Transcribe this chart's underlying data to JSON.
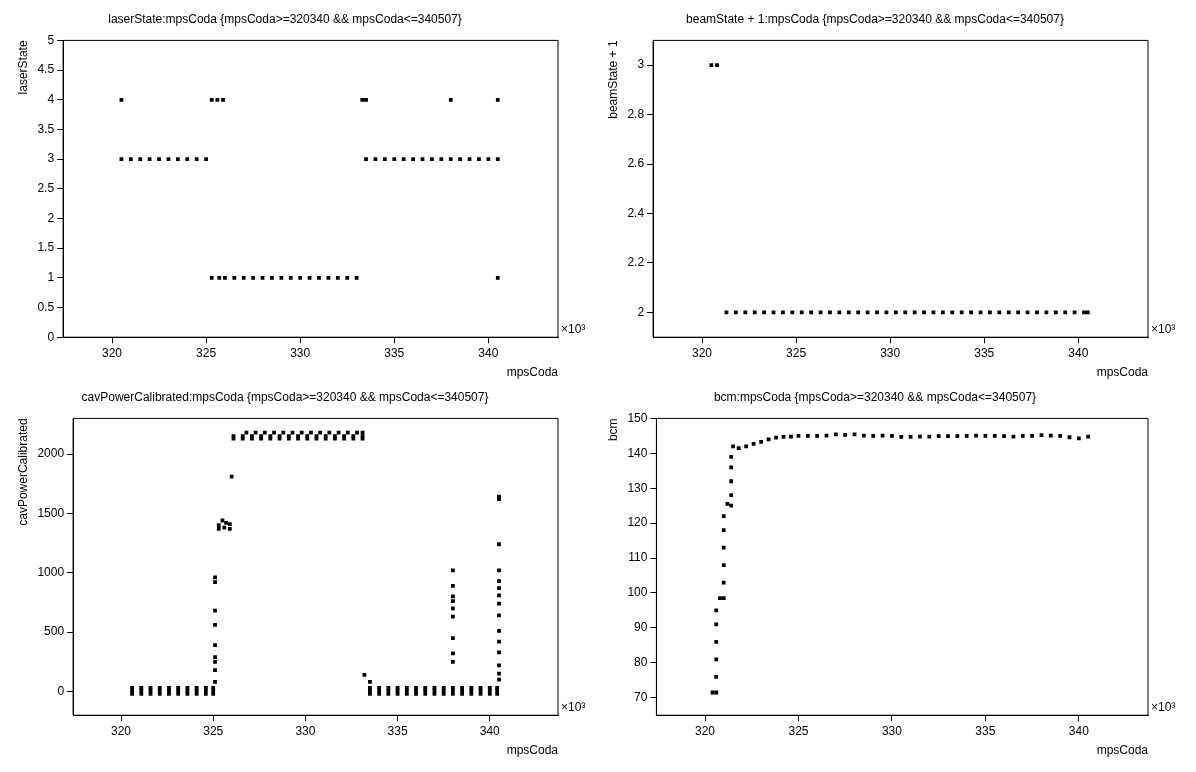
{
  "chart_data": [
    {
      "type": "scatter",
      "title": "laserState:mpsCoda {mpsCoda>=320340 && mpsCoda<=340507}",
      "xlabel": "mpsCoda",
      "ylabel": "laserState",
      "annotations": [
        "×10³"
      ],
      "color": "#000000",
      "x": [
        320.5,
        325.3,
        325.6,
        325.9,
        333.3,
        333.5,
        338,
        340.5,
        320.5,
        321,
        321.5,
        322,
        322.5,
        323,
        323.5,
        324,
        324.5,
        325,
        333.5,
        334,
        334.5,
        335,
        335.5,
        336,
        336.5,
        337,
        337.5,
        338,
        338.5,
        339,
        339.5,
        340,
        340.5,
        325.3,
        325.7,
        326,
        326.5,
        327,
        327.5,
        328,
        328.5,
        329,
        329.5,
        330,
        330.5,
        331,
        331.5,
        332,
        332.5,
        333,
        340.5
      ],
      "values": [
        4,
        4,
        4,
        4,
        4,
        4,
        4,
        4,
        3,
        3,
        3,
        3,
        3,
        3,
        3,
        3,
        3,
        3,
        3,
        3,
        3,
        3,
        3,
        3,
        3,
        3,
        3,
        3,
        3,
        3,
        3,
        3,
        3,
        1,
        1,
        1,
        1,
        1,
        1,
        1,
        1,
        1,
        1,
        1,
        1,
        1,
        1,
        1,
        1,
        1,
        1
      ],
      "xlim": [
        317.4,
        343.7
      ],
      "xticks": [
        320,
        325,
        330,
        335,
        340
      ],
      "ylim": [
        0,
        5
      ],
      "yticks": [
        0,
        0.5,
        1,
        1.5,
        2,
        2.5,
        3,
        3.5,
        4,
        4.5,
        5
      ]
    },
    {
      "type": "scatter",
      "title": "beamState + 1:mpsCoda {mpsCoda>=320340 && mpsCoda<=340507}",
      "xlabel": "mpsCoda",
      "ylabel": "beamState + 1",
      "annotations": [
        "×10³"
      ],
      "color": "#000000",
      "x": [
        320.5,
        320.8,
        321.3,
        321.8,
        322.3,
        322.8,
        323.3,
        323.8,
        324.3,
        324.8,
        325.3,
        325.8,
        326.3,
        326.8,
        327.3,
        327.8,
        328.3,
        328.8,
        329.3,
        329.8,
        330.3,
        330.8,
        331.3,
        331.8,
        332.3,
        332.8,
        333.3,
        333.8,
        334.3,
        334.8,
        335.3,
        335.8,
        336.3,
        336.8,
        337.3,
        337.8,
        338.3,
        338.8,
        339.3,
        339.8,
        340.3,
        340.5
      ],
      "values": [
        3,
        3,
        2,
        2,
        2,
        2,
        2,
        2,
        2,
        2,
        2,
        2,
        2,
        2,
        2,
        2,
        2,
        2,
        2,
        2,
        2,
        2,
        2,
        2,
        2,
        2,
        2,
        2,
        2,
        2,
        2,
        2,
        2,
        2,
        2,
        2,
        2,
        2,
        2,
        2,
        2,
        2
      ],
      "xlim": [
        317.4,
        343.7
      ],
      "xticks": [
        320,
        325,
        330,
        335,
        340
      ],
      "ylim": [
        1.9,
        3.1
      ],
      "yticks": [
        2,
        2.2,
        2.4,
        2.6,
        2.8,
        3
      ]
    },
    {
      "type": "scatter",
      "title": "cavPowerCalibrated:mpsCoda {mpsCoda>=320340 && mpsCoda<=340507}",
      "xlabel": "mpsCoda",
      "ylabel": "cavPowerCalibrated",
      "annotations": [
        "×10³"
      ],
      "color": "#000000",
      "x": [
        320.6,
        321.1,
        321.6,
        322.1,
        322.6,
        323.1,
        323.6,
        324.1,
        324.6,
        325,
        320.6,
        321.1,
        321.6,
        322.1,
        322.6,
        323.1,
        323.6,
        324.1,
        324.6,
        325,
        320.6,
        321.1,
        321.6,
        322.1,
        322.6,
        323.1,
        323.6,
        324.1,
        324.6,
        325,
        333.5,
        334,
        334.5,
        335,
        335.5,
        336,
        336.5,
        337,
        337.5,
        338,
        338.5,
        339,
        339.5,
        340,
        340.4,
        333.5,
        334,
        334.5,
        335,
        335.5,
        336,
        336.5,
        337,
        337.5,
        338,
        338.5,
        339,
        339.5,
        340,
        340.4,
        333.5,
        334,
        334.5,
        335,
        335.5,
        336,
        336.5,
        337,
        337.5,
        338,
        338.5,
        339,
        339.5,
        340,
        340.4,
        326.8,
        327.3,
        327.8,
        328.3,
        328.8,
        329.3,
        329.8,
        330.3,
        330.8,
        331.3,
        331.8,
        332.3,
        332.8,
        333.1,
        326.1,
        326.6,
        327.1,
        327.6,
        328.1,
        328.6,
        329.1,
        329.6,
        330.1,
        330.6,
        331.1,
        331.6,
        332.1,
        332.6,
        333.1,
        326.1,
        326.6,
        327.1,
        327.6,
        328.1,
        328.6,
        329.1,
        329.6,
        330.1,
        330.6,
        331.1,
        331.6,
        332.1,
        332.6,
        333.1,
        325.3,
        325.5,
        325.7,
        325.9,
        325.3,
        325.6,
        325.9,
        325.1,
        325.1,
        325.1,
        325.1,
        325.1,
        325.1,
        325.1,
        325.1,
        325.1,
        326,
        333.2,
        333.5,
        338,
        338,
        338,
        338,
        338,
        338,
        338,
        338,
        338,
        340.5,
        340.5,
        340.5,
        340.5,
        340.5,
        340.5,
        340.5,
        340.5,
        340.5,
        340.5,
        340.5,
        340.5,
        340.5,
        340.5,
        340.5
      ],
      "values": [
        30,
        30,
        30,
        30,
        30,
        30,
        30,
        30,
        30,
        30,
        10,
        10,
        10,
        10,
        10,
        10,
        10,
        10,
        10,
        10,
        -20,
        -20,
        -20,
        -20,
        -20,
        -20,
        -20,
        -20,
        -20,
        -20,
        30,
        30,
        30,
        30,
        30,
        30,
        30,
        30,
        30,
        30,
        30,
        30,
        30,
        30,
        30,
        10,
        10,
        10,
        10,
        10,
        10,
        10,
        10,
        10,
        10,
        10,
        10,
        10,
        10,
        10,
        -20,
        -20,
        -20,
        -20,
        -20,
        -20,
        -20,
        -20,
        -20,
        -20,
        -20,
        -20,
        -20,
        -20,
        -20,
        2180,
        2180,
        2180,
        2180,
        2180,
        2180,
        2180,
        2180,
        2180,
        2180,
        2180,
        2180,
        2180,
        2180,
        2150,
        2150,
        2150,
        2150,
        2150,
        2150,
        2150,
        2150,
        2150,
        2150,
        2150,
        2150,
        2150,
        2150,
        2150,
        2130,
        2130,
        2130,
        2130,
        2130,
        2130,
        2130,
        2130,
        2130,
        2130,
        2130,
        2130,
        2130,
        2130,
        2130,
        1400,
        1440,
        1420,
        1410,
        1370,
        1380,
        1370,
        960,
        920,
        680,
        560,
        390,
        290,
        250,
        180,
        80,
        1810,
        140,
        80,
        1020,
        890,
        800,
        760,
        700,
        630,
        450,
        320,
        250,
        1640,
        1620,
        1240,
        1020,
        930,
        870,
        810,
        740,
        640,
        510,
        420,
        330,
        220,
        150,
        100
      ],
      "xlim": [
        317.4,
        343.7
      ],
      "xticks": [
        320,
        325,
        330,
        335,
        340
      ],
      "ylim": [
        -200,
        2300
      ],
      "yticks": [
        0,
        500,
        1000,
        1500,
        2000
      ]
    },
    {
      "type": "scatter",
      "title": "bcm:mpsCoda {mpsCoda>=320340 && mpsCoda<=340507}",
      "xlabel": "mpsCoda",
      "ylabel": "bcm",
      "annotations": [
        "×10³"
      ],
      "color": "#000000",
      "x": [
        320.4,
        320.6,
        320.6,
        320.6,
        320.6,
        320.6,
        320.6,
        320.8,
        321,
        321,
        321,
        321,
        321,
        321,
        321.2,
        321.4,
        321.4,
        321.4,
        321.4,
        321.4,
        321.5,
        321.8,
        322.2,
        322.6,
        323,
        323.4,
        323.8,
        324.2,
        324.6,
        325,
        325.5,
        326,
        326.5,
        327,
        327.5,
        328,
        328.5,
        329,
        329.5,
        330,
        330.5,
        331,
        331.5,
        332,
        332.5,
        333,
        333.5,
        334,
        334.5,
        335,
        335.5,
        336,
        336.5,
        337,
        337.5,
        338,
        338.5,
        339,
        339.5,
        340,
        340.5
      ],
      "values": [
        71.5,
        71.5,
        76,
        81,
        86,
        91,
        95,
        98.5,
        98.5,
        103,
        108,
        113,
        118,
        122,
        125.5,
        125,
        128,
        132,
        136,
        139,
        142,
        141.5,
        142,
        142.7,
        143.3,
        144,
        144.5,
        144.7,
        144.8,
        145,
        145,
        145,
        145.1,
        145.4,
        145.3,
        145.4,
        145.1,
        145,
        145.1,
        145,
        144.7,
        144.7,
        144.8,
        144.8,
        144.9,
        144.9,
        144.9,
        145,
        145.1,
        145,
        145,
        144.9,
        144.8,
        145,
        145,
        145.2,
        145.1,
        145,
        144.6,
        144.3,
        144.8
      ],
      "xlim": [
        317.4,
        343.7
      ],
      "xticks": [
        320,
        325,
        330,
        335,
        340
      ],
      "ylim": [
        65,
        150
      ],
      "yticks": [
        70,
        80,
        90,
        100,
        110,
        120,
        130,
        140,
        150
      ]
    }
  ]
}
